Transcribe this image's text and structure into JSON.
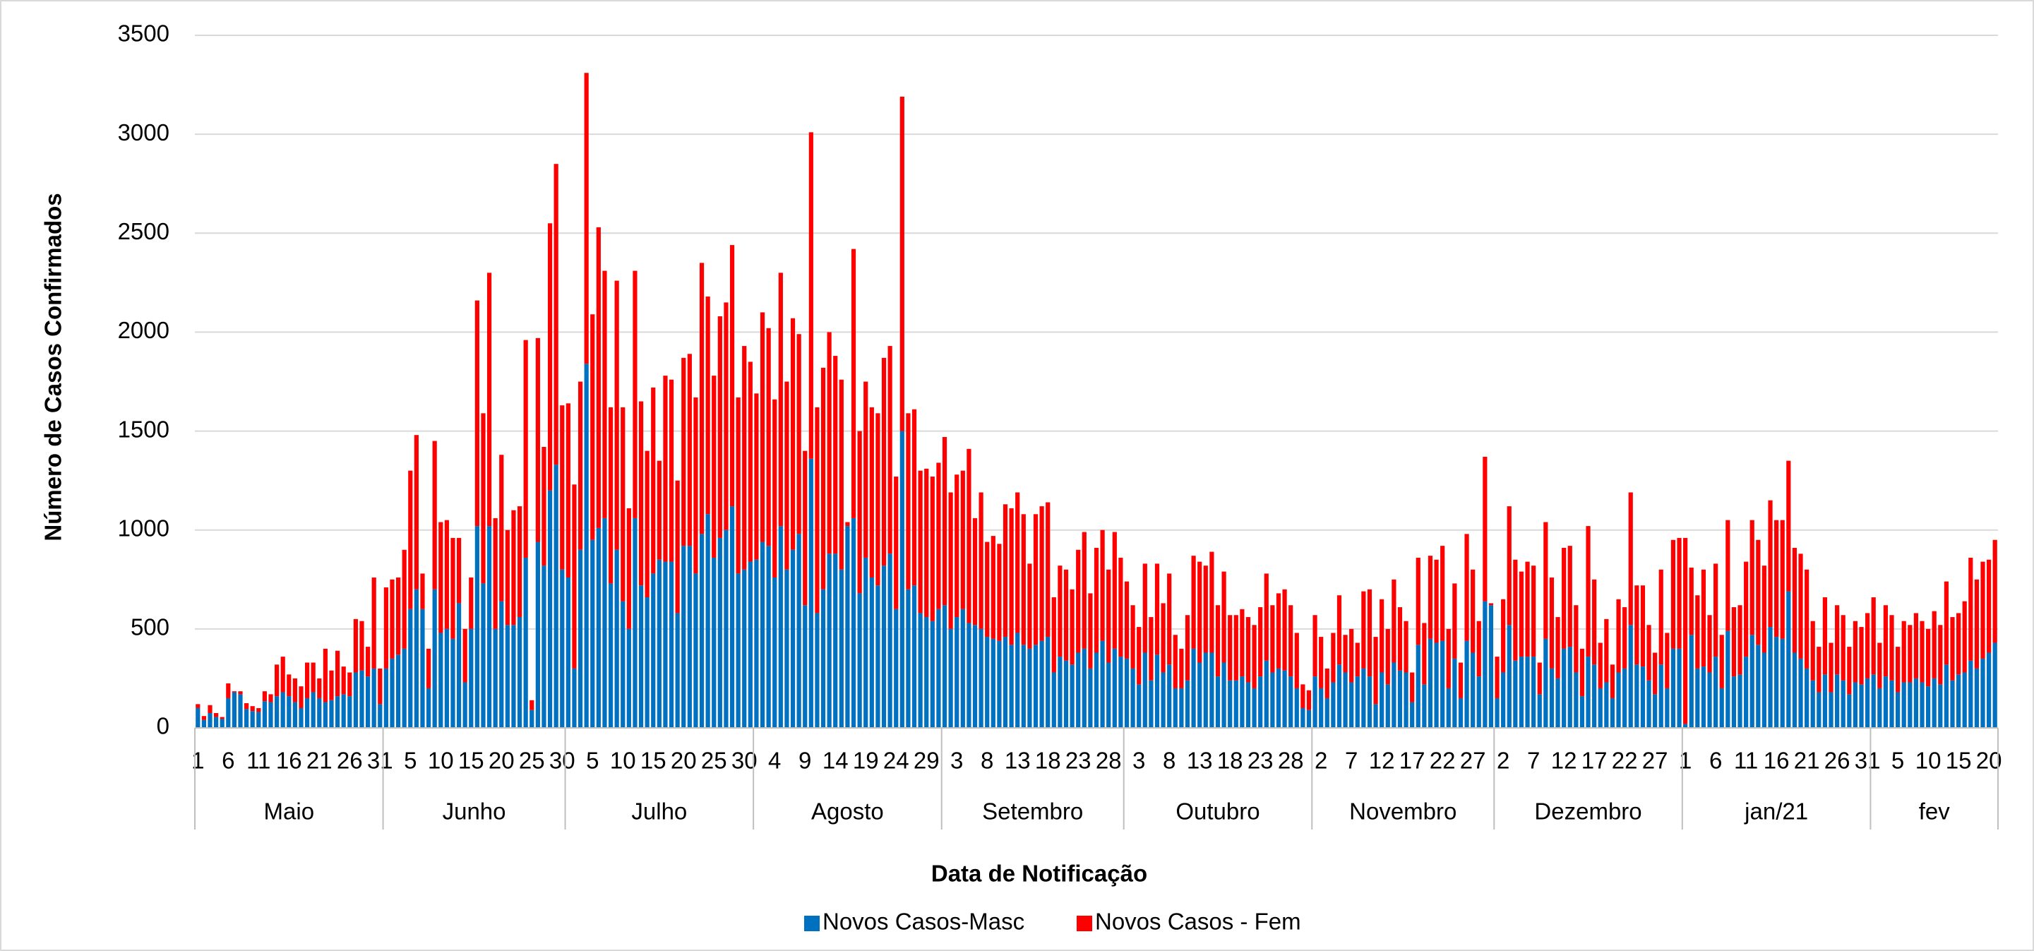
{
  "chart_data": {
    "type": "bar",
    "stacked": true,
    "x_label": "Data de Notificação",
    "y_label": "Número de Casos Confirmados",
    "ylim": [
      0,
      3500
    ],
    "yticks": [
      0,
      500,
      1000,
      1500,
      2000,
      2500,
      3000,
      3500
    ],
    "grid": true,
    "legend": "bottom",
    "category_groups": [
      {
        "label": "Maio",
        "span": 31
      },
      {
        "label": "Junho",
        "span": 30
      },
      {
        "label": "Julho",
        "span": 31
      },
      {
        "label": "Agosto",
        "span": 31
      },
      {
        "label": "Setembro",
        "span": 30
      },
      {
        "label": "Outubro",
        "span": 31
      },
      {
        "label": "Novembro",
        "span": 30
      },
      {
        "label": "Dezembro",
        "span": 31
      },
      {
        "label": "jan/21",
        "span": 31
      },
      {
        "label": "fev",
        "span": 21
      }
    ],
    "categories": [
      "1",
      null,
      null,
      null,
      null,
      "6",
      null,
      null,
      null,
      null,
      "11",
      null,
      null,
      null,
      null,
      "16",
      null,
      null,
      null,
      null,
      "21",
      null,
      null,
      null,
      null,
      "26",
      null,
      null,
      null,
      null,
      "31",
      null,
      null,
      null,
      null,
      "5",
      null,
      null,
      null,
      null,
      "10",
      null,
      null,
      null,
      null,
      "15",
      null,
      null,
      null,
      null,
      "20",
      null,
      null,
      null,
      null,
      "25",
      null,
      null,
      null,
      null,
      "30",
      null,
      null,
      null,
      null,
      "5",
      null,
      null,
      null,
      null,
      "10",
      null,
      null,
      null,
      null,
      "15",
      null,
      null,
      null,
      null,
      "20",
      null,
      null,
      null,
      null,
      "25",
      null,
      null,
      null,
      null,
      "30",
      null,
      null,
      null,
      null,
      "4",
      null,
      null,
      null,
      null,
      "9",
      null,
      null,
      null,
      null,
      "14",
      null,
      null,
      null,
      null,
      "19",
      null,
      null,
      null,
      null,
      "24",
      null,
      null,
      null,
      null,
      "29",
      null,
      null,
      null,
      null,
      "3",
      null,
      null,
      null,
      null,
      "8",
      null,
      null,
      null,
      null,
      "13",
      null,
      null,
      null,
      null,
      "18",
      null,
      null,
      null,
      null,
      "23",
      null,
      null,
      null,
      null,
      "28",
      null,
      null,
      null,
      null,
      "3",
      null,
      null,
      null,
      null,
      "8",
      null,
      null,
      null,
      null,
      "13",
      null,
      null,
      null,
      null,
      "18",
      null,
      null,
      null,
      null,
      "23",
      null,
      null,
      null,
      null,
      "28",
      null,
      null,
      null,
      null,
      "2",
      null,
      null,
      null,
      null,
      "7",
      null,
      null,
      null,
      null,
      "12",
      null,
      null,
      null,
      null,
      "17",
      null,
      null,
      null,
      null,
      "22",
      null,
      null,
      null,
      null,
      "27",
      null,
      null,
      null,
      null,
      "2",
      null,
      null,
      null,
      null,
      "7",
      null,
      null,
      null,
      null,
      "12",
      null,
      null,
      null,
      null,
      "17",
      null,
      null,
      null,
      null,
      "22",
      null,
      null,
      null,
      null,
      "27",
      null,
      null,
      null,
      null,
      "1",
      null,
      null,
      null,
      null,
      "6",
      null,
      null,
      null,
      null,
      "11",
      null,
      null,
      null,
      null,
      "16",
      null,
      null,
      null,
      null,
      "21",
      null,
      null,
      null,
      null,
      "26",
      null,
      null,
      null,
      null,
      "31",
      null,
      null,
      null,
      null,
      "5",
      null,
      null,
      null,
      null,
      "10",
      null,
      null,
      null,
      null,
      "15",
      null,
      null,
      null,
      null,
      "20",
      null
    ],
    "series": [
      {
        "name": "Novos Casos-Masc",
        "color": "#0070c0",
        "values": [
          100,
          40,
          75,
          55,
          45,
          150,
          180,
          170,
          95,
          85,
          80,
          135,
          130,
          160,
          180,
          160,
          130,
          100,
          150,
          180,
          150,
          130,
          140,
          160,
          170,
          160,
          280,
          290,
          260,
          300,
          120,
          300,
          350,
          370,
          400,
          600,
          700,
          600,
          200,
          700,
          480,
          500,
          450,
          630,
          230,
          500,
          1020,
          730,
          1020,
          500,
          640,
          520,
          520,
          560,
          860,
          90,
          940,
          820,
          1200,
          1330,
          800,
          760,
          300,
          900,
          1840,
          950,
          1010,
          1060,
          730,
          900,
          640,
          500,
          1060,
          720,
          660,
          780,
          850,
          840,
          840,
          580,
          920,
          920,
          780,
          980,
          1080,
          860,
          960,
          1000,
          1120,
          780,
          800,
          840,
          850,
          940,
          920,
          760,
          1020,
          800,
          900,
          980,
          620,
          1360,
          580,
          700,
          880,
          880,
          800,
          1020,
          1060,
          680,
          860,
          760,
          720,
          820,
          880,
          600,
          1500,
          700,
          720,
          580,
          560,
          540,
          600,
          620,
          500,
          560,
          600,
          530,
          520,
          500,
          460,
          450,
          440,
          460,
          420,
          480,
          420,
          400,
          420,
          440,
          460,
          280,
          360,
          340,
          320,
          380,
          400,
          300,
          380,
          440,
          330,
          400,
          360,
          350,
          300,
          220,
          380,
          240,
          370,
          280,
          320,
          200,
          200,
          240,
          400,
          330,
          380,
          380,
          260,
          330,
          240,
          240,
          260,
          230,
          200,
          260,
          340,
          280,
          300,
          290,
          260,
          200,
          100,
          90,
          260,
          200,
          150,
          230,
          320,
          280,
          230,
          260,
          300,
          260,
          120,
          280,
          220,
          330,
          290,
          280,
          130,
          420,
          220,
          450,
          430,
          440,
          200,
          350,
          150,
          440,
          380,
          260,
          640,
          620,
          150,
          280,
          520,
          340,
          360,
          360,
          360,
          170,
          450,
          300,
          250,
          400,
          410,
          280,
          160,
          360,
          320,
          200,
          230,
          150,
          280,
          300,
          520,
          320,
          310,
          240,
          170,
          320,
          200,
          400,
          400,
          20,
          470,
          300,
          310,
          280,
          360,
          200,
          490,
          260,
          270,
          360,
          470,
          420,
          380,
          510,
          460,
          450,
          690,
          380,
          350,
          300,
          240,
          180,
          270,
          180,
          270,
          240,
          170,
          230,
          220,
          250,
          270,
          200,
          260,
          240,
          180,
          230,
          230,
          250,
          230,
          210,
          250,
          220,
          320,
          240,
          270,
          280,
          340,
          300,
          350,
          380,
          430
        ]
      },
      {
        "name": "Novos Casos - Fem",
        "color": "#ff0000",
        "values": [
          20,
          20,
          40,
          20,
          10,
          75,
          5,
          15,
          30,
          25,
          20,
          50,
          40,
          160,
          180,
          110,
          120,
          110,
          180,
          150,
          100,
          270,
          150,
          230,
          140,
          120,
          270,
          250,
          150,
          460,
          180,
          410,
          400,
          390,
          500,
          700,
          780,
          180,
          200,
          750,
          560,
          550,
          510,
          330,
          270,
          260,
          1140,
          860,
          1280,
          560,
          740,
          480,
          580,
          560,
          1100,
          50,
          1030,
          600,
          1350,
          1520,
          830,
          880,
          930,
          850,
          1470,
          1140,
          1520,
          1250,
          890,
          1360,
          980,
          610,
          1250,
          930,
          740,
          940,
          500,
          940,
          920,
          670,
          950,
          970,
          890,
          1370,
          1100,
          920,
          1120,
          1150,
          1320,
          890,
          1130,
          1010,
          840,
          1160,
          1100,
          900,
          1280,
          950,
          1170,
          1010,
          780,
          1650,
          1040,
          1120,
          1120,
          1000,
          960,
          20,
          1360,
          820,
          890,
          860,
          870,
          1050,
          1050,
          670,
          1690,
          890,
          890,
          720,
          750,
          730,
          740,
          850,
          690,
          720,
          700,
          880,
          540,
          690,
          480,
          520,
          490,
          670,
          690,
          710,
          660,
          430,
          660,
          680,
          680,
          380,
          460,
          460,
          380,
          520,
          590,
          380,
          530,
          560,
          470,
          590,
          500,
          390,
          320,
          290,
          450,
          320,
          460,
          350,
          460,
          270,
          200,
          330,
          470,
          510,
          440,
          510,
          360,
          460,
          330,
          330,
          340,
          330,
          320,
          350,
          440,
          340,
          380,
          410,
          360,
          280,
          120,
          100,
          310,
          260,
          150,
          250,
          350,
          190,
          270,
          170,
          390,
          440,
          340,
          370,
          280,
          420,
          320,
          260,
          150,
          440,
          310,
          420,
          420,
          480,
          300,
          380,
          180,
          540,
          420,
          280,
          730,
          10,
          210,
          370,
          600,
          510,
          430,
          480,
          460,
          160,
          590,
          460,
          310,
          510,
          510,
          340,
          240,
          660,
          430,
          230,
          320,
          170,
          370,
          310,
          670,
          400,
          410,
          280,
          210,
          480,
          280,
          550,
          560,
          940,
          340,
          370,
          490,
          290,
          470,
          270,
          560,
          350,
          350,
          480,
          580,
          530,
          440,
          640,
          590,
          600,
          660,
          530,
          530,
          500,
          300,
          230,
          390,
          250,
          350,
          330,
          240,
          310,
          290,
          330,
          390,
          230,
          360,
          330,
          230,
          310,
          290,
          330,
          310,
          290,
          340,
          300,
          420,
          320,
          310,
          360,
          520,
          450,
          490,
          470,
          520
        ]
      }
    ]
  }
}
